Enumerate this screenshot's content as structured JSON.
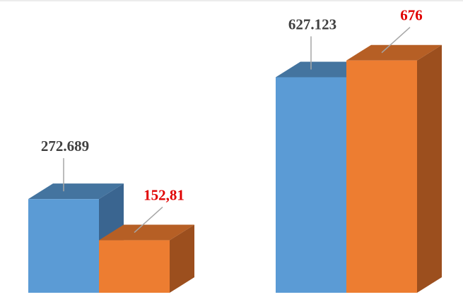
{
  "chart_data": {
    "type": "bar3d",
    "categories": [
      null,
      null
    ],
    "ylim": [
      0,
      700
    ],
    "series": [
      {
        "color": "#5b9bd5",
        "top_color": "#44749f",
        "side_color": "#3a6590",
        "label_color": "#404040",
        "values": [
          272.689,
          627.123
        ],
        "value_labels": [
          "272.689",
          "627.123"
        ]
      },
      {
        "color": "#ed7d31",
        "top_color": "#b65f25",
        "side_color": "#9c4f1e",
        "label_color": "#e00000",
        "values": [
          152.81,
          676
        ],
        "value_labels": [
          "152,81",
          "676"
        ]
      }
    ]
  }
}
